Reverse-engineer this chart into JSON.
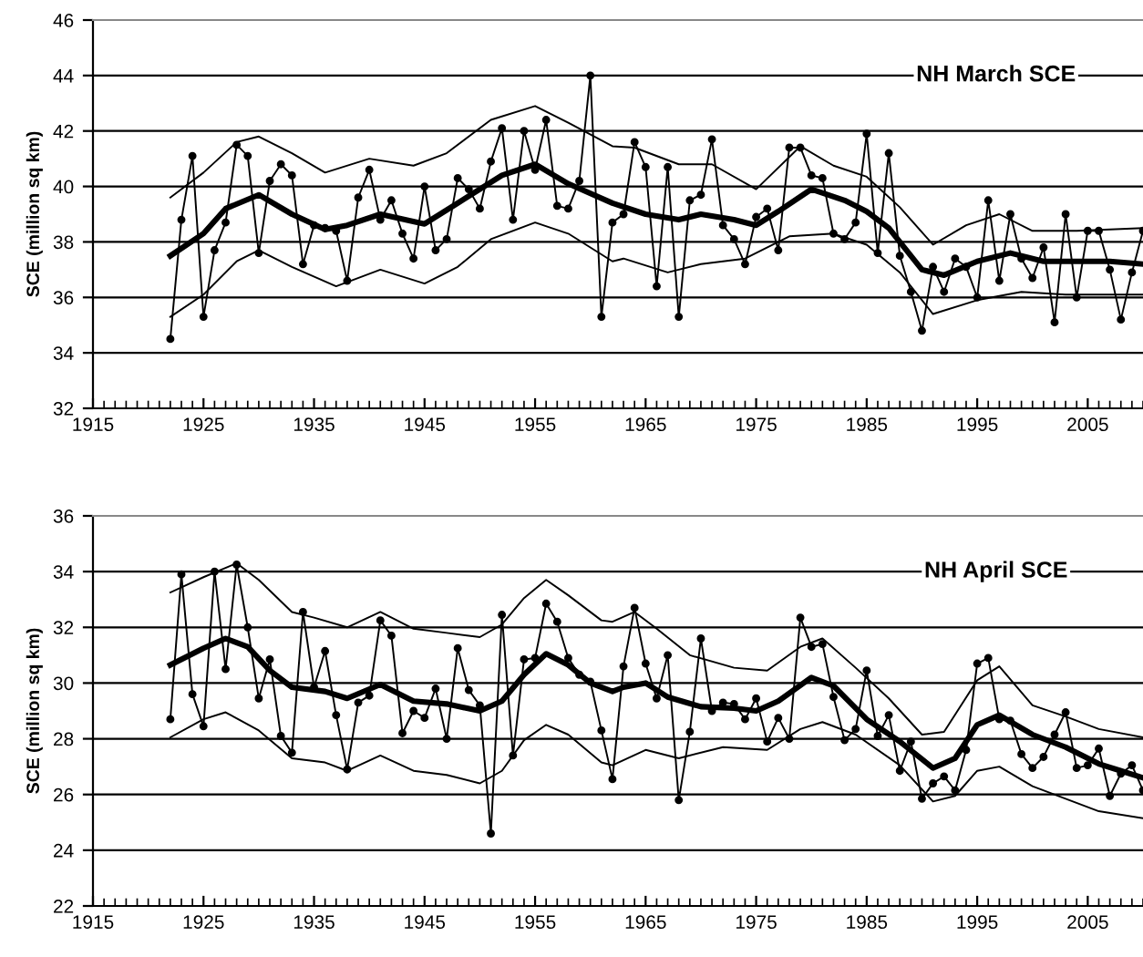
{
  "chart_data": [
    {
      "type": "line",
      "title": "NH March SCE",
      "ylabel": "SCE (million sq km)",
      "xlim": [
        1915,
        2010
      ],
      "xticks": [
        1915,
        1925,
        1935,
        1945,
        1955,
        1965,
        1975,
        1985,
        1995,
        2005
      ],
      "ylim": [
        32,
        46
      ],
      "yticks": [
        32,
        34,
        36,
        38,
        40,
        42,
        44,
        46
      ],
      "grid": "y",
      "legend": false,
      "series": [
        {
          "color": "#000000",
          "marker": "circle",
          "x": [
            1922,
            1923,
            1924,
            1925,
            1926,
            1927,
            1928,
            1929,
            1930,
            1931,
            1932,
            1933,
            1934,
            1935,
            1936,
            1937,
            1938,
            1939,
            1940,
            1941,
            1942,
            1943,
            1944,
            1945,
            1946,
            1947,
            1948,
            1949,
            1950,
            1951,
            1952,
            1953,
            1954,
            1955,
            1956,
            1957,
            1958,
            1959,
            1960,
            1961,
            1962,
            1963,
            1964,
            1965,
            1966,
            1967,
            1968,
            1969,
            1970,
            1971,
            1972,
            1973,
            1974,
            1975,
            1976,
            1977,
            1978,
            1979,
            1980,
            1981,
            1982,
            1983,
            1984,
            1985,
            1986,
            1987,
            1988,
            1989,
            1990,
            1991,
            1992,
            1993,
            1994,
            1995,
            1996,
            1997,
            1998,
            1999,
            2000,
            2001,
            2002,
            2003,
            2004,
            2005,
            2006,
            2007,
            2008,
            2009,
            2010
          ],
          "values": [
            34.5,
            38.8,
            41.1,
            35.3,
            37.7,
            38.7,
            41.5,
            41.1,
            37.6,
            40.2,
            40.8,
            40.4,
            37.2,
            38.6,
            38.5,
            38.4,
            36.6,
            39.6,
            40.6,
            38.8,
            39.5,
            38.3,
            37.4,
            40.0,
            37.7,
            38.1,
            40.3,
            39.9,
            39.2,
            40.9,
            42.1,
            38.8,
            42.0,
            40.6,
            42.4,
            39.3,
            39.2,
            40.2,
            44.0,
            35.3,
            38.7,
            39.0,
            41.6,
            40.7,
            36.4,
            40.7,
            35.3,
            39.5,
            39.7,
            41.7,
            38.6,
            38.1,
            37.2,
            38.9,
            39.2,
            37.7,
            41.4,
            41.4,
            40.4,
            40.3,
            38.3,
            38.1,
            38.7,
            41.9,
            37.6,
            41.2,
            37.5,
            36.2,
            34.8,
            37.1,
            36.2,
            37.4,
            37.1,
            36.0,
            39.5,
            36.6,
            39.0,
            37.4,
            36.7,
            37.8,
            35.1,
            39.0,
            36.0,
            38.4,
            38.4,
            37.0,
            35.2,
            36.9,
            38.4
          ]
        },
        {
          "color": "#000000",
          "marker": "none",
          "x": [
            1922,
            1925,
            1927,
            1930,
            1933,
            1936,
            1938,
            1941,
            1945,
            1948,
            1952,
            1955,
            1958,
            1962,
            1965,
            1968,
            1970,
            1973,
            1975,
            1977,
            1980,
            1983,
            1985,
            1987,
            1990,
            1992,
            1995,
            1998,
            2001,
            2004,
            2007,
            2010
          ],
          "values": [
            37.5,
            38.3,
            39.2,
            39.7,
            39.0,
            38.45,
            38.6,
            39.0,
            38.65,
            39.4,
            40.4,
            40.8,
            40.1,
            39.4,
            39.0,
            38.8,
            39.0,
            38.8,
            38.6,
            39.1,
            39.9,
            39.5,
            39.1,
            38.5,
            37.0,
            36.8,
            37.3,
            37.6,
            37.3,
            37.3,
            37.3,
            37.2
          ]
        },
        {
          "color": "#000000",
          "marker": "none",
          "x": [
            1922,
            1925,
            1928,
            1930,
            1933,
            1936,
            1940,
            1944,
            1947,
            1951,
            1955,
            1958,
            1962,
            1964,
            1968,
            1971,
            1975,
            1979,
            1982,
            1985,
            1988,
            1991,
            1994,
            1997,
            2000,
            2004,
            2010
          ],
          "values": [
            39.6,
            40.5,
            41.6,
            41.8,
            41.2,
            40.5,
            41.0,
            40.75,
            41.2,
            42.4,
            42.9,
            42.3,
            41.45,
            41.4,
            40.8,
            40.8,
            39.9,
            41.45,
            40.75,
            40.35,
            39.25,
            37.9,
            38.6,
            39.0,
            38.4,
            38.4,
            38.5
          ]
        },
        {
          "color": "#000000",
          "marker": "none",
          "x": [
            1922,
            1925,
            1928,
            1930,
            1933,
            1937,
            1941,
            1945,
            1948,
            1951,
            1955,
            1958,
            1962,
            1963,
            1967,
            1970,
            1974,
            1978,
            1982,
            1985,
            1988,
            1991,
            1995,
            1999,
            2003,
            2010
          ],
          "values": [
            35.3,
            36.1,
            37.3,
            37.7,
            37.1,
            36.4,
            37.0,
            36.5,
            37.1,
            38.1,
            38.7,
            38.3,
            37.3,
            37.4,
            36.9,
            37.2,
            37.4,
            38.2,
            38.3,
            37.9,
            36.9,
            35.4,
            35.9,
            36.2,
            36.1,
            36.1
          ]
        }
      ]
    },
    {
      "type": "line",
      "title": "NH April SCE",
      "ylabel": "SCE (million sq km)",
      "xlim": [
        1915,
        2010
      ],
      "xticks": [
        1915,
        1925,
        1935,
        1945,
        1955,
        1965,
        1975,
        1985,
        1995,
        2005
      ],
      "ylim": [
        22,
        36
      ],
      "yticks": [
        22,
        24,
        26,
        28,
        30,
        32,
        34,
        36
      ],
      "grid": "y",
      "legend": false,
      "series": [
        {
          "color": "#000000",
          "marker": "circle",
          "x": [
            1922,
            1923,
            1924,
            1925,
            1926,
            1927,
            1928,
            1929,
            1930,
            1931,
            1932,
            1933,
            1934,
            1935,
            1936,
            1937,
            1938,
            1939,
            1940,
            1941,
            1942,
            1943,
            1944,
            1945,
            1946,
            1947,
            1948,
            1949,
            1950,
            1951,
            1952,
            1953,
            1954,
            1955,
            1956,
            1957,
            1958,
            1959,
            1960,
            1961,
            1962,
            1963,
            1964,
            1965,
            1966,
            1967,
            1968,
            1969,
            1970,
            1971,
            1972,
            1973,
            1974,
            1975,
            1976,
            1977,
            1978,
            1979,
            1980,
            1981,
            1982,
            1983,
            1984,
            1985,
            1986,
            1987,
            1988,
            1989,
            1990,
            1991,
            1992,
            1993,
            1994,
            1995,
            1996,
            1997,
            1998,
            1999,
            2000,
            2001,
            2002,
            2003,
            2004,
            2005,
            2006,
            2007,
            2008,
            2009,
            2010
          ],
          "values": [
            28.7,
            33.9,
            29.6,
            28.45,
            34.0,
            30.5,
            34.25,
            32.0,
            29.45,
            30.85,
            28.1,
            27.5,
            32.55,
            29.85,
            31.15,
            28.85,
            26.9,
            29.3,
            29.55,
            32.25,
            31.7,
            28.2,
            29.0,
            28.75,
            29.8,
            28.0,
            31.25,
            29.75,
            29.2,
            24.6,
            32.45,
            27.4,
            30.85,
            30.9,
            32.85,
            32.2,
            30.9,
            30.3,
            30.05,
            28.3,
            26.55,
            30.6,
            32.7,
            30.7,
            29.45,
            31.0,
            25.8,
            28.25,
            31.6,
            29.0,
            29.3,
            29.25,
            28.7,
            29.45,
            27.9,
            28.75,
            28.0,
            32.35,
            31.3,
            31.4,
            29.5,
            27.95,
            28.35,
            30.45,
            28.1,
            28.85,
            26.85,
            27.9,
            25.85,
            26.4,
            26.65,
            26.15,
            27.6,
            30.7,
            30.9,
            28.7,
            28.65,
            27.45,
            26.95,
            27.35,
            28.15,
            28.95,
            26.95,
            27.05,
            27.65,
            25.95,
            26.75,
            27.05,
            26.15
          ]
        },
        {
          "color": "#000000",
          "marker": "none",
          "x": [
            1922,
            1925,
            1927,
            1929,
            1931,
            1933,
            1936,
            1938,
            1941,
            1944,
            1947,
            1950,
            1952,
            1954,
            1956,
            1958,
            1960,
            1962,
            1963,
            1965,
            1967,
            1970,
            1973,
            1975,
            1977,
            1980,
            1982,
            1985,
            1988,
            1991,
            1993,
            1995,
            1997,
            2000,
            2003,
            2006,
            2008,
            2010
          ],
          "values": [
            30.65,
            31.25,
            31.6,
            31.3,
            30.45,
            29.85,
            29.7,
            29.45,
            29.95,
            29.35,
            29.25,
            29.0,
            29.35,
            30.3,
            31.05,
            30.65,
            30.0,
            29.7,
            29.85,
            30.0,
            29.5,
            29.15,
            29.1,
            29.0,
            29.35,
            30.2,
            29.9,
            28.7,
            27.9,
            26.95,
            27.3,
            28.5,
            28.85,
            28.15,
            27.7,
            27.1,
            26.85,
            26.6
          ]
        },
        {
          "color": "#000000",
          "marker": "none",
          "x": [
            1922,
            1925,
            1928,
            1930,
            1933,
            1935,
            1938,
            1941,
            1944,
            1947,
            1950,
            1952,
            1954,
            1956,
            1958,
            1961,
            1962,
            1964,
            1966,
            1969,
            1973,
            1976,
            1979,
            1981,
            1984,
            1987,
            1990,
            1992,
            1995,
            1997,
            2000,
            2003,
            2006,
            2010
          ],
          "values": [
            33.25,
            33.8,
            34.3,
            33.7,
            32.55,
            32.35,
            32.0,
            32.55,
            31.95,
            31.8,
            31.65,
            32.1,
            33.05,
            33.7,
            33.15,
            32.25,
            32.2,
            32.55,
            31.95,
            31.0,
            30.55,
            30.45,
            31.3,
            31.6,
            30.55,
            29.45,
            28.15,
            28.25,
            30.1,
            30.6,
            29.2,
            28.8,
            28.35,
            28.05
          ]
        },
        {
          "color": "#000000",
          "marker": "none",
          "x": [
            1922,
            1925,
            1927,
            1930,
            1933,
            1936,
            1938,
            1941,
            1944,
            1947,
            1950,
            1952,
            1954,
            1956,
            1958,
            1961,
            1962,
            1965,
            1968,
            1972,
            1976,
            1979,
            1981,
            1984,
            1988,
            1991,
            1993,
            1995,
            1997,
            2000,
            2003,
            2006,
            2010
          ],
          "values": [
            28.05,
            28.7,
            28.95,
            28.3,
            27.3,
            27.15,
            26.85,
            27.4,
            26.85,
            26.7,
            26.4,
            26.85,
            27.95,
            28.5,
            28.15,
            27.15,
            27.05,
            27.6,
            27.3,
            27.7,
            27.6,
            28.35,
            28.6,
            28.15,
            27.05,
            25.75,
            25.95,
            26.85,
            27.0,
            26.3,
            25.85,
            25.4,
            25.15
          ]
        }
      ]
    }
  ]
}
